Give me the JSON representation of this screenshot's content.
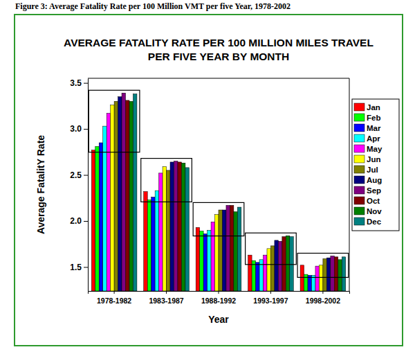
{
  "chart_data": {
    "type": "bar",
    "caption": "Figure 3: Average Fatality Rate per 100 Million VMT per five Year, 1978-2002",
    "title": [
      "AVERAGE FATALITY RATE PER 100 MILLION MILES TRAVEL",
      "PER FIVE YEAR BY MONTH"
    ],
    "x_label": "Year",
    "y_label": "Average FatalitY Rate",
    "categories": [
      "1978-1982",
      "1983-1987",
      "1988-1992",
      "1993-1997",
      "1998-2002"
    ],
    "series": [
      {
        "name": "Jan",
        "color": "#ff0000",
        "values": [
          2.77,
          2.32,
          1.93,
          1.63,
          1.52
        ]
      },
      {
        "name": "Feb",
        "color": "#00ff00",
        "values": [
          2.81,
          2.23,
          1.89,
          1.57,
          1.42
        ]
      },
      {
        "name": "Mar",
        "color": "#0000ff",
        "values": [
          2.85,
          2.26,
          1.86,
          1.55,
          1.41
        ]
      },
      {
        "name": "Apr",
        "color": "#00ffff",
        "values": [
          3.03,
          2.33,
          1.9,
          1.58,
          1.41
        ]
      },
      {
        "name": "May",
        "color": "#ff00ff",
        "values": [
          3.17,
          2.52,
          1.99,
          1.63,
          1.51
        ]
      },
      {
        "name": "Jun",
        "color": "#ffff00",
        "values": [
          3.26,
          2.59,
          2.07,
          1.7,
          1.52
        ]
      },
      {
        "name": "Jul",
        "color": "#808000",
        "values": [
          3.3,
          2.55,
          2.12,
          1.73,
          1.59
        ]
      },
      {
        "name": "Aug",
        "color": "#000080",
        "values": [
          3.35,
          2.64,
          2.12,
          1.79,
          1.6
        ]
      },
      {
        "name": "Sep",
        "color": "#800080",
        "values": [
          3.39,
          2.65,
          2.17,
          1.78,
          1.62
        ]
      },
      {
        "name": "Oct",
        "color": "#800000",
        "values": [
          3.31,
          2.64,
          2.17,
          1.83,
          1.61
        ]
      },
      {
        "name": "Nov",
        "color": "#008000",
        "values": [
          3.3,
          2.63,
          2.1,
          1.84,
          1.58
        ]
      },
      {
        "name": "Dec",
        "color": "#008080",
        "values": [
          3.38,
          2.58,
          2.15,
          1.83,
          1.61
        ]
      }
    ],
    "ylim": [
      1.24,
      3.55
    ],
    "yticks": [
      1.5,
      {
        "value": 2,
        "label": "2.0"
      },
      2.5,
      {
        "value": 3,
        "label": "3.0"
      },
      3.5
    ],
    "grid": false,
    "legend": "right"
  }
}
